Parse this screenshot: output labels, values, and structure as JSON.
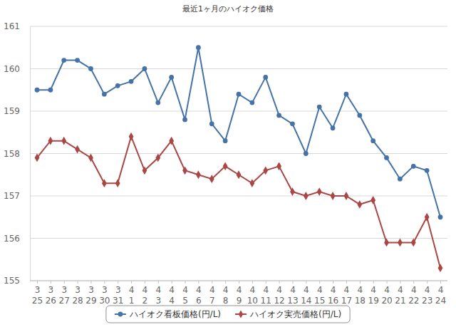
{
  "chart_data": {
    "type": "line",
    "title": "最近1ヶ月のハイオク価格",
    "categories": [
      "3\n25",
      "3\n26",
      "3\n27",
      "3\n28",
      "3\n29",
      "3\n30",
      "3\n31",
      "4\n1",
      "4\n2",
      "4\n3",
      "4\n4",
      "4\n5",
      "4\n6",
      "4\n7",
      "4\n8",
      "4\n9",
      "4\n10",
      "4\n11",
      "4\n12",
      "4\n13",
      "4\n14",
      "4\n15",
      "4\n16",
      "4\n17",
      "4\n18",
      "4\n19",
      "4\n20",
      "4\n21",
      "4\n22",
      "4\n23",
      "4\n24"
    ],
    "series": [
      {
        "name": "ハイオク看板価格(円/L)",
        "color": "#4572a7",
        "marker": "circle",
        "values": [
          159.5,
          159.5,
          160.2,
          160.2,
          160.0,
          159.4,
          159.6,
          159.7,
          160.0,
          159.2,
          159.8,
          158.8,
          160.5,
          158.7,
          158.3,
          159.4,
          159.2,
          159.8,
          158.9,
          158.7,
          158.0,
          159.1,
          158.6,
          159.4,
          158.9,
          158.3,
          157.9,
          157.4,
          157.7,
          157.6,
          156.5
        ]
      },
      {
        "name": "ハイオク実売価格(円/L)",
        "color": "#aa4643",
        "marker": "diamond",
        "values": [
          157.9,
          158.3,
          158.3,
          158.1,
          157.9,
          157.3,
          157.3,
          158.4,
          157.6,
          157.9,
          158.3,
          157.6,
          157.5,
          157.4,
          157.7,
          157.5,
          157.3,
          157.6,
          157.7,
          157.1,
          157.0,
          157.1,
          157.0,
          157.0,
          156.8,
          156.9,
          155.9,
          155.9,
          155.9,
          156.5,
          155.3
        ]
      }
    ],
    "ylim": [
      155,
      161
    ],
    "yticks": [
      155,
      156,
      157,
      158,
      159,
      160,
      161
    ],
    "grid": true,
    "legend": "bottom"
  }
}
